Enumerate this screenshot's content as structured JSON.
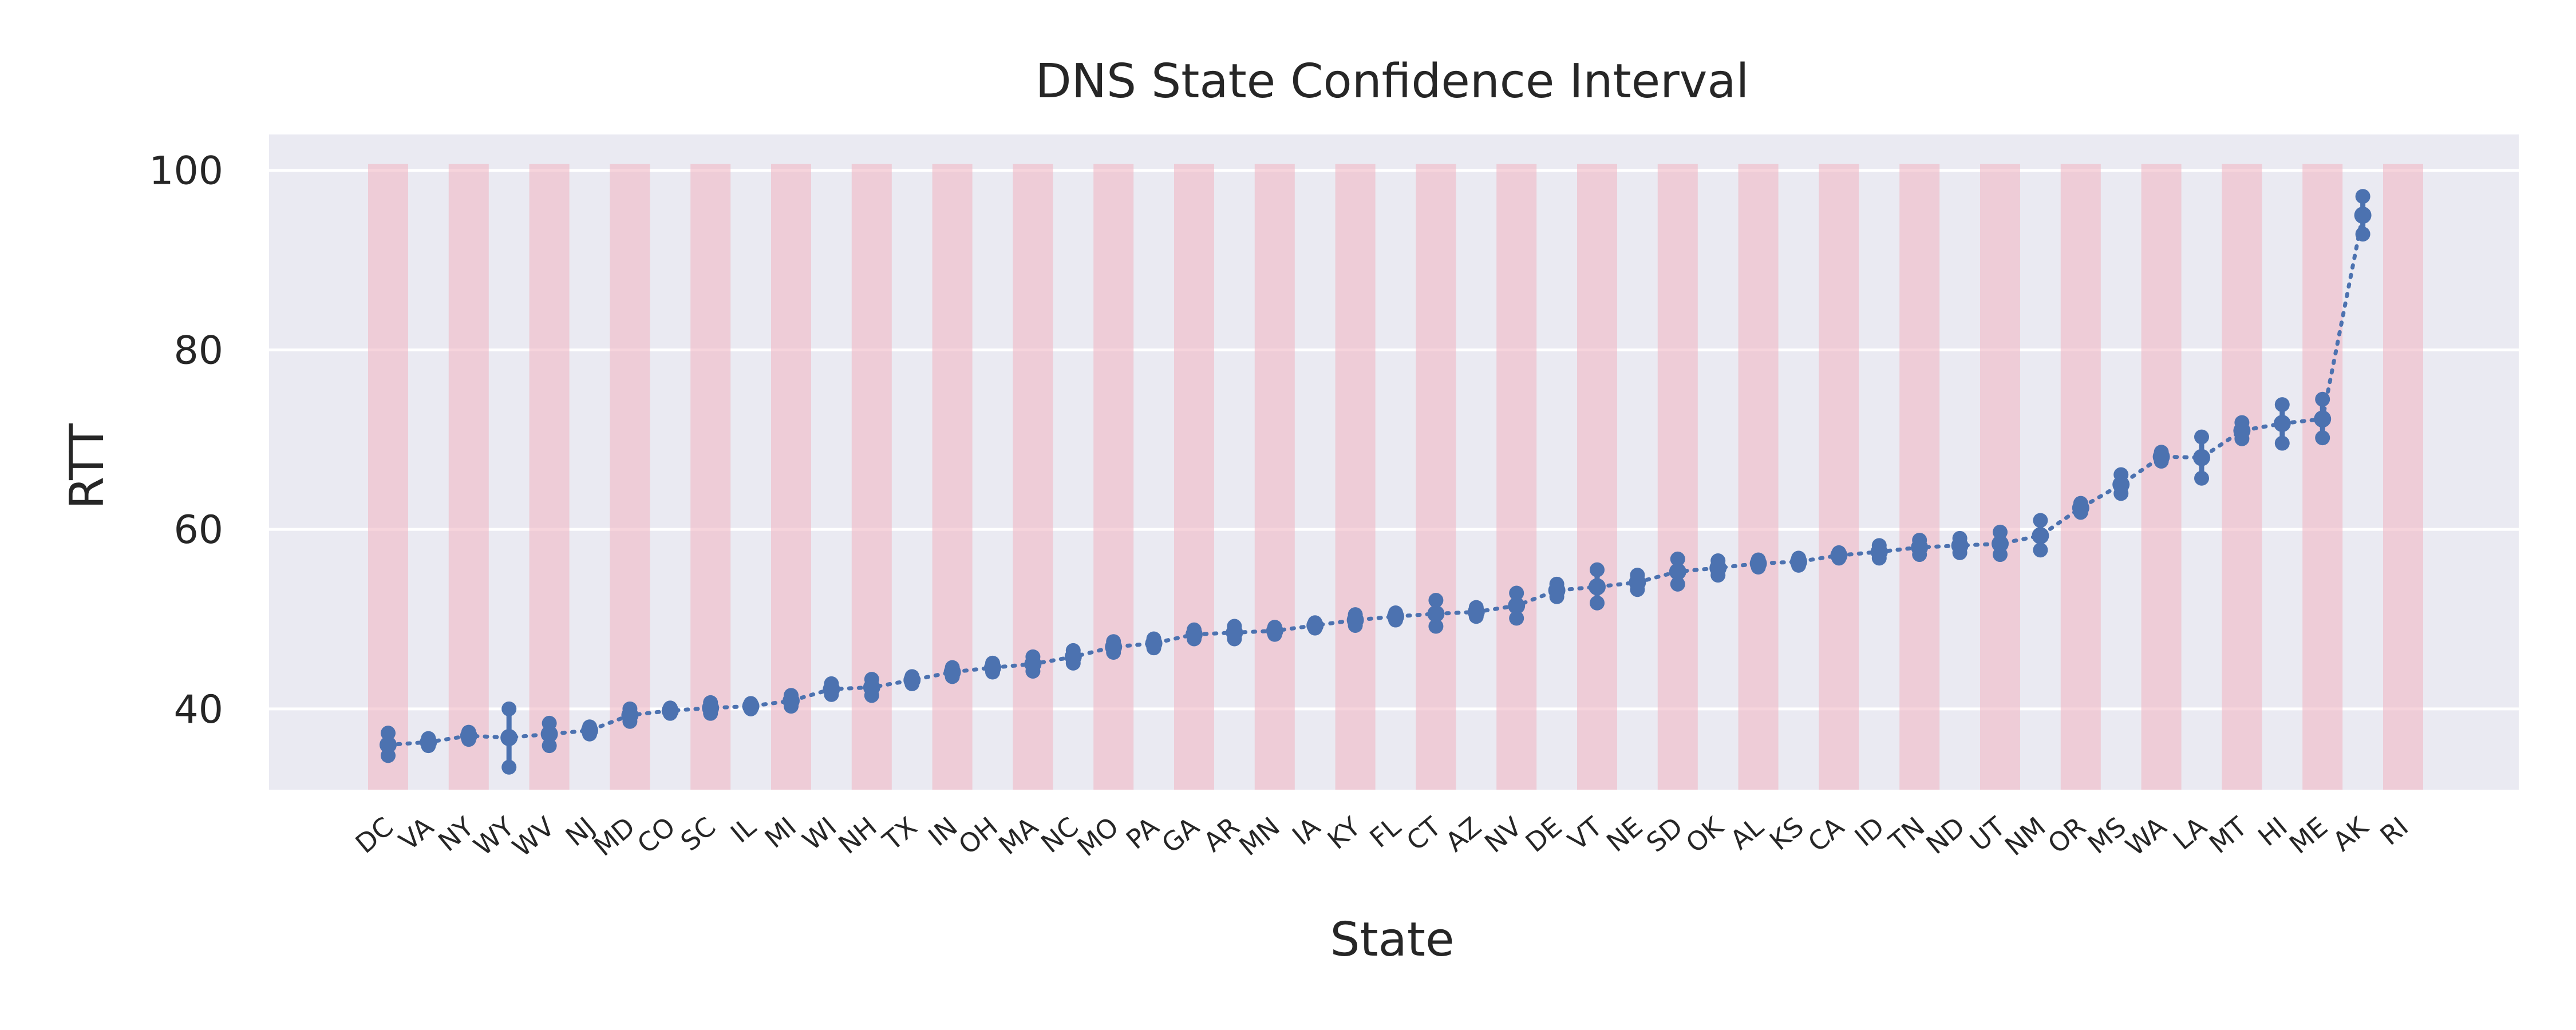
{
  "chart_data": {
    "type": "line",
    "title": "DNS State Confidence Interval",
    "xlabel": "State",
    "ylabel": "RTT",
    "ylim": [
      31,
      104
    ],
    "yticks": [
      40,
      60,
      80,
      100
    ],
    "grid": true,
    "legend": "none",
    "colors": {
      "background": "#eaeaf2",
      "grid": "#ffffff",
      "band": "#f0b8c4",
      "series": "#4c72b0",
      "text": "#262626"
    },
    "band_top": 100.7,
    "categories": [
      "DC",
      "VA",
      "NY",
      "WY",
      "WV",
      "NJ",
      "MD",
      "CO",
      "SC",
      "IL",
      "MI",
      "WI",
      "NH",
      "TX",
      "IN",
      "OH",
      "MA",
      "NC",
      "MO",
      "PA",
      "GA",
      "AR",
      "MN",
      "IA",
      "KY",
      "FL",
      "CT",
      "AZ",
      "NV",
      "DE",
      "VT",
      "NE",
      "SD",
      "OK",
      "AL",
      "KS",
      "CA",
      "ID",
      "TN",
      "ND",
      "UT",
      "NM",
      "OR",
      "MS",
      "WA",
      "LA",
      "MT",
      "HI",
      "ME",
      "AK",
      "RI"
    ],
    "series": [
      {
        "values": [
          36.0,
          36.3,
          37.0,
          36.8,
          37.2,
          37.6,
          39.3,
          39.8,
          40.1,
          40.3,
          40.9,
          42.2,
          42.4,
          43.2,
          44.1,
          44.6,
          45.0,
          45.8,
          46.9,
          47.3,
          48.3,
          48.5,
          48.7,
          49.3,
          49.9,
          50.3,
          50.6,
          50.8,
          51.5,
          53.2,
          53.6,
          54.1,
          55.3,
          55.7,
          56.2,
          56.4,
          57.1,
          57.5,
          58.0,
          58.2,
          58.4,
          59.3,
          62.4,
          65.0,
          68.1,
          68.0,
          71.0,
          71.8,
          72.3,
          95.0,
          null
        ],
        "lower": [
          34.8,
          35.9,
          36.6,
          33.5,
          35.9,
          37.2,
          38.6,
          39.5,
          39.5,
          40.0,
          40.3,
          41.6,
          41.5,
          42.8,
          43.6,
          44.1,
          44.2,
          45.1,
          46.3,
          46.8,
          47.8,
          47.8,
          48.3,
          49.0,
          49.3,
          49.9,
          49.2,
          50.3,
          50.1,
          52.5,
          51.8,
          53.3,
          53.9,
          54.9,
          55.8,
          56.0,
          56.8,
          56.8,
          57.2,
          57.4,
          57.2,
          57.7,
          61.9,
          64.0,
          67.6,
          65.7,
          70.1,
          69.6,
          70.2,
          92.9,
          null
        ],
        "upper": [
          37.3,
          36.7,
          37.4,
          40.0,
          38.4,
          38.0,
          40.0,
          40.1,
          40.7,
          40.6,
          41.5,
          42.8,
          43.3,
          43.6,
          44.6,
          45.1,
          45.8,
          46.5,
          47.5,
          47.8,
          48.8,
          49.2,
          49.1,
          49.6,
          50.5,
          50.7,
          52.1,
          51.3,
          52.9,
          53.9,
          55.5,
          54.9,
          56.7,
          56.5,
          56.6,
          56.8,
          57.4,
          58.2,
          58.8,
          59.0,
          59.7,
          61.0,
          62.9,
          66.1,
          68.6,
          70.3,
          71.9,
          73.9,
          74.5,
          97.1,
          null
        ]
      }
    ]
  }
}
